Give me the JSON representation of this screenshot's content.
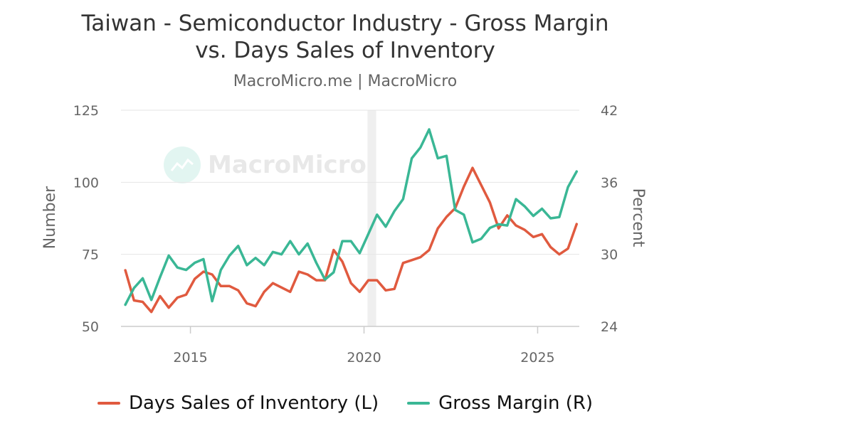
{
  "header": {
    "title_line1": "Taiwan - Semiconductor Industry - Gross Margin",
    "title_line2": "vs. Days Sales of Inventory",
    "subtitle": "MacroMicro.me | MacroMicro"
  },
  "watermark": {
    "text": "MacroMicro",
    "icon": "chart-logo-icon"
  },
  "colors": {
    "dsi": "#e05a3f",
    "gm": "#3ab795",
    "grid": "#e6e6e6",
    "shade": "#efefef"
  },
  "chart_data": {
    "type": "line",
    "xlim": [
      2013.0,
      2026.2
    ],
    "x_ticks": [
      2015,
      2020,
      2025
    ],
    "y_left": {
      "label": "Number",
      "min": 50,
      "max": 125,
      "ticks": [
        50,
        75,
        100,
        125
      ]
    },
    "y_right": {
      "label": "Percent",
      "min": 24,
      "max": 42,
      "ticks": [
        24,
        30,
        36,
        42
      ]
    },
    "shaded_region": [
      2020.1,
      2020.35
    ],
    "grid": true,
    "legend_position": "bottom",
    "series": [
      {
        "name": "Days Sales of Inventory (L)",
        "axis": "left",
        "color": "#e05a3f",
        "x": [
          2013.125,
          2013.375,
          2013.625,
          2013.875,
          2014.125,
          2014.375,
          2014.625,
          2014.875,
          2015.125,
          2015.375,
          2015.625,
          2015.875,
          2016.125,
          2016.375,
          2016.625,
          2016.875,
          2017.125,
          2017.375,
          2017.625,
          2017.875,
          2018.125,
          2018.375,
          2018.625,
          2018.875,
          2019.125,
          2019.375,
          2019.625,
          2019.875,
          2020.125,
          2020.375,
          2020.625,
          2020.875,
          2021.125,
          2021.375,
          2021.625,
          2021.875,
          2022.125,
          2022.375,
          2022.625,
          2022.875,
          2023.125,
          2023.375,
          2023.625,
          2023.875,
          2024.125,
          2024.375,
          2024.625,
          2024.875,
          2025.125,
          2025.375,
          2025.625,
          2025.875,
          2026.125
        ],
        "values": [
          69.5,
          59.0,
          58.5,
          55.0,
          60.5,
          56.5,
          60.0,
          61.0,
          66.5,
          69.0,
          68.0,
          64.0,
          64.0,
          62.5,
          58.0,
          57.0,
          62.0,
          65.0,
          63.5,
          62.0,
          69.0,
          68.0,
          66.0,
          66.0,
          76.5,
          72.5,
          65.0,
          62.0,
          66.0,
          66.0,
          62.5,
          63.0,
          72.0,
          73.0,
          74.0,
          76.5,
          84.0,
          88.0,
          91.0,
          98.5,
          105.0,
          99.0,
          93.0,
          84.0,
          88.5,
          85.0,
          83.5,
          81.0,
          82.0,
          77.5,
          75.0,
          77.0,
          85.5
        ]
      },
      {
        "name": "Gross Margin (R)",
        "axis": "right",
        "color": "#3ab795",
        "x": [
          2013.125,
          2013.375,
          2013.625,
          2013.875,
          2014.125,
          2014.375,
          2014.625,
          2014.875,
          2015.125,
          2015.375,
          2015.625,
          2015.875,
          2016.125,
          2016.375,
          2016.625,
          2016.875,
          2017.125,
          2017.375,
          2017.625,
          2017.875,
          2018.125,
          2018.375,
          2018.625,
          2018.875,
          2019.125,
          2019.375,
          2019.625,
          2019.875,
          2020.125,
          2020.375,
          2020.625,
          2020.875,
          2021.125,
          2021.375,
          2021.625,
          2021.875,
          2022.125,
          2022.375,
          2022.625,
          2022.875,
          2023.125,
          2023.375,
          2023.625,
          2023.875,
          2024.125,
          2024.375,
          2024.625,
          2024.875,
          2025.125,
          2025.375,
          2025.625,
          2025.875,
          2026.125
        ],
        "values": [
          25.8,
          27.2,
          28.0,
          26.2,
          28.1,
          29.9,
          28.9,
          28.7,
          29.3,
          29.6,
          26.1,
          28.7,
          29.9,
          30.7,
          29.1,
          29.7,
          29.1,
          30.2,
          30.0,
          31.1,
          30.0,
          30.9,
          29.3,
          27.9,
          28.5,
          31.1,
          31.1,
          30.1,
          31.7,
          33.3,
          32.3,
          33.6,
          34.6,
          38.0,
          38.9,
          40.4,
          38.0,
          38.2,
          33.7,
          33.3,
          31.0,
          31.3,
          32.2,
          32.5,
          32.4,
          34.6,
          34.0,
          33.2,
          33.8,
          33.0,
          33.1,
          35.6,
          36.9
        ]
      }
    ]
  }
}
